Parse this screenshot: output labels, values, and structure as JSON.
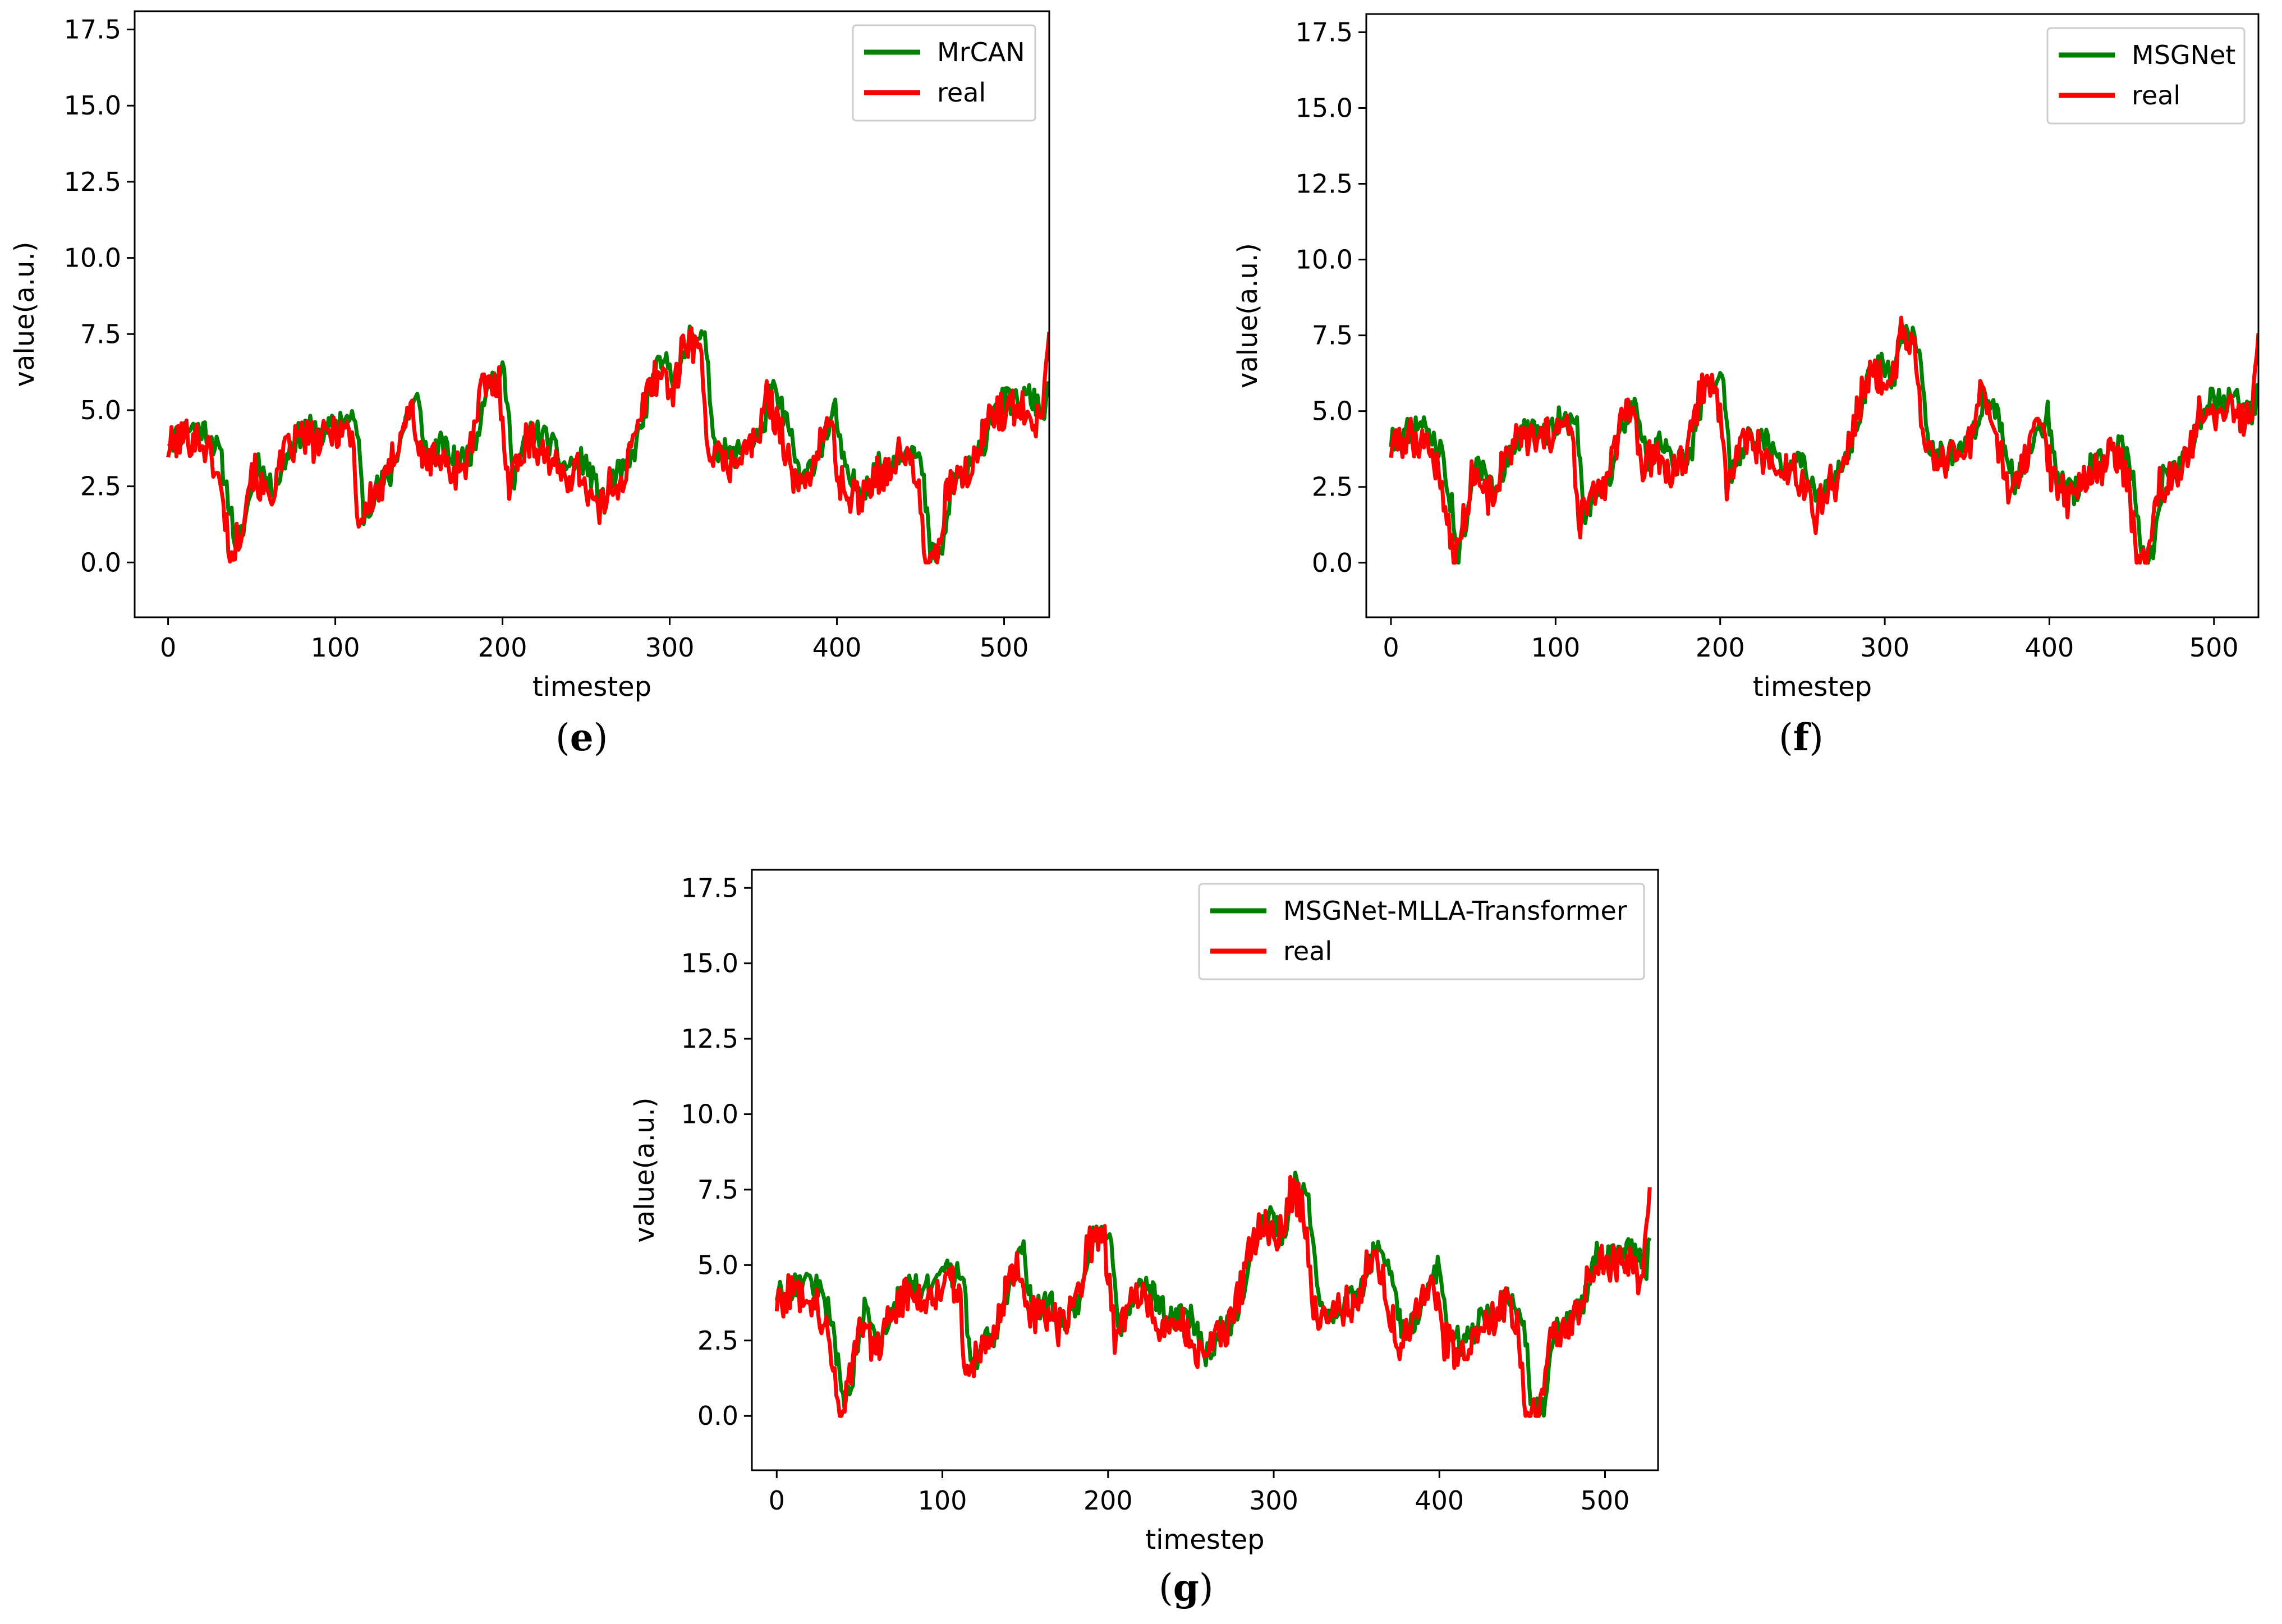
{
  "chart_data": [
    {
      "panel": "e",
      "type": "line",
      "caption": "e",
      "xlabel": "timestep",
      "ylabel": "value(a.u.)",
      "xlim": [
        -20,
        527
      ],
      "ylim": [
        -1.8,
        18.1
      ],
      "xticks": [
        0,
        100,
        200,
        300,
        400,
        500
      ],
      "yticks": [
        "0.0",
        "2.5",
        "5.0",
        "7.5",
        "10.0",
        "12.5",
        "15.0",
        "17.5"
      ],
      "legend_position": "top-right",
      "series": [
        {
          "name": "MrCAN",
          "color": "#008000"
        },
        {
          "name": "real",
          "color": "#ff0000"
        }
      ]
    },
    {
      "panel": "f",
      "type": "line",
      "caption": "f",
      "xlabel": "timestep",
      "ylabel": "value(a.u.)",
      "xlim": [
        -15,
        527
      ],
      "ylim": [
        -1.8,
        18.1
      ],
      "xticks": [
        0,
        100,
        200,
        300,
        400,
        500
      ],
      "yticks": [
        "0.0",
        "2.5",
        "5.0",
        "7.5",
        "10.0",
        "12.5",
        "15.0",
        "17.5"
      ],
      "legend_position": "top-right",
      "series": [
        {
          "name": "MSGNet",
          "color": "#008000"
        },
        {
          "name": "real",
          "color": "#ff0000"
        }
      ]
    },
    {
      "panel": "g",
      "type": "line",
      "caption": "g",
      "xlabel": "timestep",
      "ylabel": "value(a.u.)",
      "xlim": [
        -15,
        532
      ],
      "ylim": [
        -1.8,
        18.1
      ],
      "xticks": [
        0,
        100,
        200,
        300,
        400,
        500
      ],
      "yticks": [
        "0.0",
        "2.5",
        "5.0",
        "7.5",
        "10.0",
        "12.5",
        "15.0",
        "17.5"
      ],
      "legend_position": "top-right",
      "series": [
        {
          "name": "MSGNet-MLLA-Transformer",
          "color": "#008000"
        },
        {
          "name": "real",
          "color": "#ff0000"
        }
      ]
    }
  ],
  "real_keypoints": [
    [
      0,
      3.8
    ],
    [
      10,
      4.2
    ],
    [
      20,
      4.1
    ],
    [
      28,
      3.3
    ],
    [
      34,
      1.6
    ],
    [
      38,
      0.1
    ],
    [
      44,
      1.4
    ],
    [
      50,
      3.2
    ],
    [
      58,
      2.2
    ],
    [
      64,
      2.6
    ],
    [
      70,
      3.6
    ],
    [
      80,
      4.2
    ],
    [
      90,
      3.9
    ],
    [
      100,
      4.5
    ],
    [
      110,
      4.3
    ],
    [
      114,
      1.3
    ],
    [
      122,
      2.2
    ],
    [
      130,
      2.6
    ],
    [
      140,
      4.6
    ],
    [
      146,
      5.1
    ],
    [
      152,
      3.2
    ],
    [
      160,
      3.6
    ],
    [
      170,
      3.0
    ],
    [
      180,
      3.5
    ],
    [
      188,
      5.8
    ],
    [
      198,
      5.9
    ],
    [
      204,
      2.6
    ],
    [
      214,
      4.1
    ],
    [
      224,
      3.8
    ],
    [
      234,
      2.9
    ],
    [
      246,
      3.1
    ],
    [
      258,
      1.6
    ],
    [
      264,
      2.6
    ],
    [
      272,
      2.8
    ],
    [
      280,
      4.2
    ],
    [
      288,
      6.0
    ],
    [
      296,
      6.3
    ],
    [
      302,
      5.6
    ],
    [
      310,
      7.5
    ],
    [
      318,
      7.0
    ],
    [
      324,
      3.6
    ],
    [
      334,
      3.2
    ],
    [
      344,
      3.7
    ],
    [
      352,
      4.0
    ],
    [
      358,
      5.4
    ],
    [
      366,
      4.6
    ],
    [
      376,
      2.3
    ],
    [
      386,
      3.4
    ],
    [
      396,
      4.7
    ],
    [
      402,
      2.6
    ],
    [
      412,
      2.1
    ],
    [
      422,
      2.9
    ],
    [
      430,
      3.1
    ],
    [
      440,
      3.7
    ],
    [
      448,
      2.8
    ],
    [
      453,
      0.0
    ],
    [
      460,
      0.0
    ],
    [
      466,
      2.5
    ],
    [
      476,
      2.8
    ],
    [
      484,
      3.5
    ],
    [
      492,
      5.1
    ],
    [
      502,
      5.0
    ],
    [
      512,
      5.2
    ],
    [
      522,
      4.6
    ],
    [
      527,
      8.1
    ]
  ],
  "captions": {
    "e": "e",
    "f": "f",
    "g": "g"
  }
}
